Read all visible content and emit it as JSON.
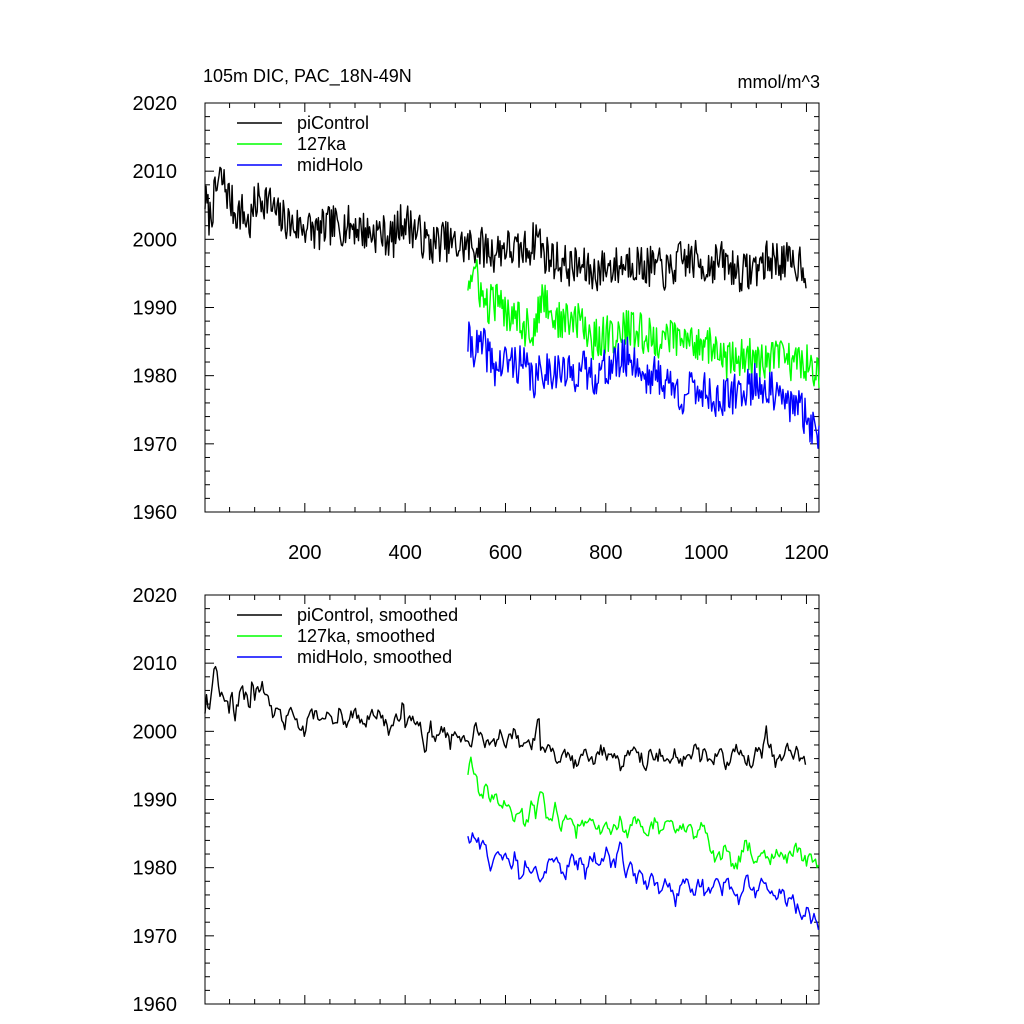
{
  "title": "105m DIC, PAC_18N-49N",
  "units": "mmol/m^3",
  "chart_data": [
    {
      "type": "line",
      "panel": "top",
      "title": "105m DIC, PAC_18N-49N",
      "units": "mmol/m^3",
      "xlim": [
        1,
        1225
      ],
      "ylim": [
        1960,
        2020
      ],
      "xticks": [
        200,
        400,
        600,
        800,
        1000,
        1200
      ],
      "xticklabels": [
        "200",
        "400",
        "600",
        "800",
        "1000",
        "1200"
      ],
      "yticks": [
        1960,
        1970,
        1980,
        1990,
        2000,
        2010,
        2020
      ],
      "yticklabels": [
        "1960",
        "1970",
        "1980",
        "1990",
        "2000",
        "2010",
        "2020"
      ],
      "legend": "top-left",
      "series": [
        {
          "name": "piControl",
          "color": "#000000",
          "x": [
            1,
            10,
            20,
            30,
            40,
            50,
            60,
            75,
            90,
            100,
            110,
            125,
            140,
            150,
            160,
            175,
            200,
            225,
            250,
            275,
            300,
            325,
            350,
            375,
            395,
            425,
            450,
            475,
            500,
            525,
            550,
            575,
            600,
            625,
            650,
            665,
            675,
            700,
            725,
            750,
            775,
            800,
            825,
            850,
            875,
            900,
            925,
            950,
            975,
            1000,
            1025,
            1050,
            1075,
            1100,
            1125,
            1150,
            1175,
            1190,
            1200
          ],
          "y": [
            2006,
            2003,
            2006,
            2009,
            2008,
            2006,
            2004,
            2004,
            2002,
            2005,
            2006,
            2006,
            2004,
            2003,
            2003,
            2002,
            2002,
            2001,
            2002,
            2002,
            2002,
            2001,
            2001,
            2000,
            2003,
            2001,
            1999,
            2000,
            1999,
            1999,
            1999,
            1998,
            1999,
            1998,
            1999,
            2001,
            1998,
            1997,
            1996,
            1996,
            1995,
            1996,
            1996,
            1997,
            1996,
            1996,
            1995,
            1997,
            1997,
            1996,
            1997,
            1996,
            1995,
            1996,
            1997,
            1997,
            1996,
            1997,
            1995
          ]
        },
        {
          "name": "127ka",
          "color": "#00ff00",
          "x": [
            525,
            540,
            560,
            580,
            600,
            620,
            640,
            660,
            675,
            700,
            725,
            750,
            775,
            800,
            825,
            850,
            875,
            900,
            925,
            950,
            975,
            1000,
            1025,
            1050,
            1075,
            1100,
            1125,
            1150,
            1175,
            1200,
            1225
          ],
          "y": [
            1994,
            1995,
            1990,
            1991,
            1989,
            1990,
            1987,
            1987,
            1992,
            1988,
            1988,
            1988,
            1985,
            1986,
            1986,
            1987,
            1986,
            1985,
            1986,
            1985,
            1985,
            1985,
            1983,
            1982,
            1983,
            1982,
            1982,
            1983,
            1982,
            1982,
            1981
          ]
        },
        {
          "name": "midHolo",
          "color": "#0000ff",
          "x": [
            525,
            540,
            560,
            580,
            600,
            620,
            640,
            660,
            675,
            700,
            725,
            750,
            775,
            800,
            825,
            850,
            875,
            900,
            925,
            950,
            975,
            1000,
            1025,
            1050,
            1075,
            1100,
            1125,
            1150,
            1175,
            1200,
            1225
          ],
          "y": [
            1985,
            1984,
            1984,
            1981,
            1982,
            1982,
            1981,
            1979,
            1981,
            1981,
            1980,
            1981,
            1980,
            1981,
            1982,
            1983,
            1980,
            1980,
            1979,
            1977,
            1978,
            1978,
            1976,
            1977,
            1978,
            1979,
            1978,
            1976,
            1976,
            1974,
            1971
          ]
        }
      ]
    },
    {
      "type": "line",
      "panel": "bottom",
      "xlim": [
        1,
        1225
      ],
      "ylim": [
        1960,
        2020
      ],
      "xticks": [
        200,
        400,
        600,
        800,
        1000,
        1200
      ],
      "yticks": [
        1960,
        1970,
        1980,
        1990,
        2000,
        2010,
        2020
      ],
      "yticklabels": [
        "1960",
        "1970",
        "1980",
        "1990",
        "2000",
        "2010",
        "2020"
      ],
      "legend": "top-left",
      "series": [
        {
          "name": "piControl, smoothed",
          "color": "#000000",
          "x": [
            1,
            5,
            10,
            15,
            20,
            25,
            30,
            35,
            40,
            45,
            50,
            55,
            60,
            65,
            70,
            75,
            80,
            85,
            90,
            95,
            100,
            105,
            110,
            115,
            120,
            125,
            130,
            135,
            140,
            145,
            150,
            160,
            170,
            180,
            190,
            200,
            210,
            220,
            230,
            240,
            250,
            260,
            270,
            280,
            290,
            300,
            310,
            320,
            330,
            340,
            350,
            360,
            370,
            380,
            390,
            395,
            400,
            410,
            420,
            430,
            440,
            450,
            460,
            470,
            480,
            490,
            500,
            510,
            520,
            530,
            540,
            550,
            560,
            570,
            580,
            590,
            600,
            610,
            620,
            630,
            640,
            650,
            660,
            665,
            670,
            680,
            690,
            700,
            710,
            720,
            730,
            740,
            750,
            760,
            770,
            780,
            790,
            800,
            810,
            820,
            830,
            840,
            850,
            860,
            870,
            880,
            890,
            900,
            910,
            920,
            930,
            940,
            950,
            960,
            970,
            980,
            990,
            1000,
            1010,
            1020,
            1030,
            1040,
            1050,
            1060,
            1070,
            1080,
            1090,
            1100,
            1110,
            1120,
            1130,
            1140,
            1150,
            1160,
            1170,
            1180,
            1190,
            1200
          ],
          "y": [
            2003,
            2005,
            2003,
            2006,
            2010,
            2008,
            2005,
            2007,
            2004,
            2005,
            2003,
            2006,
            2001,
            2004,
            2005,
            2007,
            2005,
            2006,
            2003,
            2008,
            2005,
            2007,
            2006,
            2008,
            2005,
            2006,
            2004,
            2003,
            2002,
            2004,
            2003,
            2001,
            2003,
            2002,
            2001,
            2000,
            2002,
            2003,
            2001,
            2002,
            2002,
            2001,
            2003,
            2001,
            2002,
            2003,
            2002,
            2001,
            2002,
            2003,
            2002,
            2001,
            2000,
            2002,
            2001,
            2006,
            2001,
            2002,
            2001,
            2002,
            1997,
            2001,
            1998,
            2000,
            2000,
            1998,
            2001,
            1998,
            1999,
            1998,
            2001,
            1999,
            1998,
            1999,
            1998,
            2000,
            1998,
            1999,
            2000,
            1997,
            1999,
            1998,
            1999,
            2003,
            1998,
            1997,
            1998,
            1996,
            1996,
            1997,
            1996,
            1995,
            1996,
            1997,
            1996,
            1996,
            1998,
            1996,
            1997,
            1996,
            1995,
            1996,
            1998,
            1997,
            1996,
            1995,
            1997,
            1996,
            1997,
            1995,
            1996,
            1997,
            1995,
            1997,
            1996,
            1998,
            1996,
            1997,
            1995,
            1996,
            1997,
            1995,
            1996,
            1998,
            1997,
            1996,
            1995,
            1998,
            1996,
            2000,
            1997,
            1995,
            1996,
            1998,
            1996,
            1997,
            1995,
            1996
          ]
        },
        {
          "name": "127ka, smoothed",
          "color": "#00ff00",
          "x": [
            525,
            530,
            540,
            550,
            560,
            570,
            580,
            590,
            600,
            610,
            620,
            630,
            640,
            650,
            660,
            670,
            680,
            690,
            700,
            710,
            720,
            730,
            740,
            750,
            760,
            770,
            780,
            790,
            800,
            810,
            820,
            830,
            840,
            850,
            860,
            870,
            880,
            890,
            900,
            910,
            920,
            930,
            940,
            950,
            960,
            970,
            980,
            990,
            1000,
            1010,
            1020,
            1030,
            1040,
            1050,
            1060,
            1070,
            1080,
            1090,
            1100,
            1110,
            1120,
            1130,
            1140,
            1150,
            1160,
            1170,
            1180,
            1190,
            1200,
            1210,
            1220,
            1225
          ],
          "y": [
            1994,
            1996,
            1994,
            1990,
            1992,
            1990,
            1991,
            1989,
            1990,
            1988,
            1987,
            1989,
            1986,
            1989,
            1988,
            1992,
            1988,
            1987,
            1989,
            1986,
            1987,
            1988,
            1985,
            1987,
            1986,
            1988,
            1986,
            1985,
            1987,
            1985,
            1986,
            1987,
            1985,
            1986,
            1987,
            1986,
            1985,
            1986,
            1987,
            1985,
            1986,
            1987,
            1985,
            1986,
            1985,
            1986,
            1984,
            1986,
            1985,
            1983,
            1981,
            1982,
            1983,
            1981,
            1980,
            1982,
            1984,
            1982,
            1981,
            1983,
            1982,
            1981,
            1983,
            1982,
            1981,
            1982,
            1983,
            1982,
            1981,
            1982,
            1980,
            1981
          ]
        },
        {
          "name": "midHolo, smoothed",
          "color": "#0000ff",
          "x": [
            525,
            530,
            540,
            550,
            560,
            570,
            580,
            590,
            600,
            610,
            620,
            630,
            640,
            650,
            660,
            670,
            680,
            690,
            700,
            710,
            720,
            730,
            740,
            750,
            760,
            770,
            780,
            790,
            800,
            810,
            820,
            830,
            840,
            850,
            860,
            870,
            880,
            890,
            900,
            910,
            920,
            930,
            940,
            950,
            960,
            970,
            980,
            990,
            1000,
            1010,
            1020,
            1030,
            1040,
            1050,
            1060,
            1070,
            1080,
            1090,
            1100,
            1110,
            1120,
            1130,
            1140,
            1150,
            1160,
            1170,
            1180,
            1190,
            1200,
            1210,
            1220,
            1225
          ],
          "y": [
            1985,
            1984,
            1985,
            1983,
            1984,
            1980,
            1982,
            1981,
            1982,
            1980,
            1982,
            1978,
            1981,
            1979,
            1981,
            1978,
            1980,
            1981,
            1982,
            1980,
            1979,
            1982,
            1980,
            1981,
            1979,
            1982,
            1981,
            1980,
            1983,
            1980,
            1981,
            1984,
            1979,
            1981,
            1978,
            1980,
            1977,
            1979,
            1978,
            1976,
            1978,
            1977,
            1975,
            1977,
            1979,
            1976,
            1977,
            1978,
            1976,
            1977,
            1979,
            1976,
            1978,
            1977,
            1976,
            1975,
            1979,
            1977,
            1976,
            1978,
            1977,
            1976,
            1975,
            1977,
            1975,
            1976,
            1974,
            1973,
            1974,
            1972,
            1973,
            1971
          ]
        }
      ]
    }
  ]
}
